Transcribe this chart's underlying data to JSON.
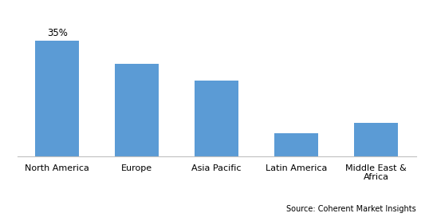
{
  "categories": [
    "North America",
    "Europe",
    "Asia Pacific",
    "Latin America",
    "Middle East &\nAfrica"
  ],
  "values": [
    35,
    28,
    23,
    7,
    10
  ],
  "bar_color": "#5B9BD5",
  "annotation_text": "35%",
  "annotation_bar_index": 0,
  "source_text": "Source: Coherent Market Insights",
  "background_color": "#ffffff",
  "ylim": [
    0,
    42
  ],
  "bar_width": 0.55,
  "xlabel_fontsize": 8,
  "annotation_fontsize": 8.5,
  "source_fontsize": 7
}
